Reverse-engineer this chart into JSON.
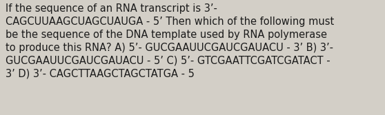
{
  "background_color": "#d3cfc7",
  "text_color": "#1a1a1a",
  "font_size": 10.5,
  "font_family": "DejaVu Sans",
  "text": "If the sequence of an RNA transcript is 3’-\nCAGCUUAAGCUAGCUAUGA - 5’ Then which of the following must\nbe the sequence of the DNA template used by RNA polymerase\nto produce this RNA? A) 5’- GUCGAAUUCGAUCGAUACU - 3’ B) 3’-\nGUCGAAUUCGAUCGAUACU - 5’ C) 5’- GTCGAATTCGATCGATACT -\n3’ D) 3’- CAGCTTAAGCTAGCTATGA - 5",
  "figwidth": 5.58,
  "figheight": 1.67,
  "dpi": 100
}
